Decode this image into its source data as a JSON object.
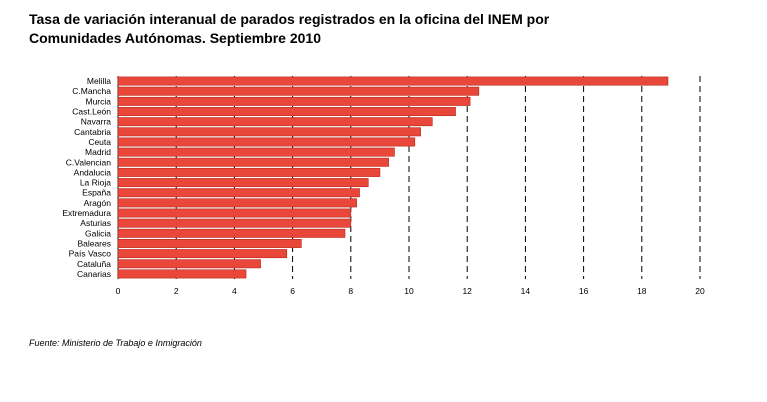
{
  "title_line1": "Tasa de variación interanual de parados registrados en la oficina del INEM por",
  "title_line2": "Comunidades Autónomas. Septiembre 2010",
  "source": "Fuente: Ministerio de Trabajo e Inmigración",
  "chart_data": {
    "type": "bar",
    "orientation": "horizontal",
    "categories": [
      "Melilla",
      "C.Mancha",
      "Murcia",
      "Cast.León",
      "Navarra",
      "Cantabria",
      "Ceuta",
      "Madrid",
      "C.Valencian",
      "Andalucia",
      "La Rioja",
      "España",
      "Aragón",
      "Extremadura",
      "Asturias",
      "Galicia",
      "Baleares",
      "País Vasco",
      "Cataluña",
      "Canarias"
    ],
    "values": [
      18.9,
      12.4,
      12.1,
      11.6,
      10.8,
      10.4,
      10.2,
      9.5,
      9.3,
      9.0,
      8.6,
      8.3,
      8.2,
      8.0,
      8.0,
      7.8,
      6.3,
      5.8,
      4.9,
      4.4
    ],
    "xlim": [
      0,
      20
    ],
    "xticks": [
      0,
      2,
      4,
      6,
      8,
      10,
      12,
      14,
      16,
      18,
      20
    ],
    "grid": "vertical dashed",
    "bar_color": "#e8473a",
    "bar_edge_color": "#b8281c"
  }
}
